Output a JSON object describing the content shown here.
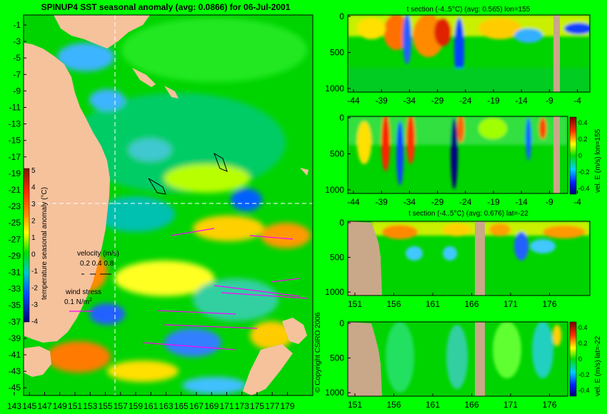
{
  "chart_data": [
    {
      "type": "heatmap",
      "title": "SPINUP4 SST seasonal anomaly  (avg: 0.0866) for 06-Jul-2001",
      "x_ticks": [
        "143",
        "145",
        "147",
        "149",
        "151",
        "153",
        "155",
        "157",
        "159",
        "161",
        "163",
        "165",
        "167",
        "169",
        "171",
        "173",
        "175",
        "177",
        "179"
      ],
      "y_ticks": [
        "-1",
        "-3",
        "-5",
        "-7",
        "-9",
        "-11",
        "-13",
        "-15",
        "-17",
        "-19",
        "-21",
        "-23",
        "-25",
        "-27",
        "-29",
        "-31",
        "-33",
        "-35",
        "-37",
        "-39",
        "-41",
        "-43",
        "-45"
      ],
      "xlim": [
        143,
        180
      ],
      "ylim": [
        -45,
        0
      ],
      "crosshair": {
        "lon": 155,
        "lat": -22
      },
      "colorbar": {
        "label": "temperature seasonal anomaly (°C)",
        "ticks": [
          "5",
          "4",
          "3",
          "2",
          "1",
          "0",
          "-1",
          "-2",
          "-3",
          "-4"
        ],
        "range": [
          -4,
          5
        ]
      },
      "legend": {
        "velocity_label": "velocity (m/s)",
        "velocity_ticks": "0.2 0.4 0.8",
        "wind_label": "wind stress",
        "wind_value": "0.1 N/m",
        "wind_exp": "2"
      },
      "copyright": "© Copyright CSIRO 2006"
    },
    {
      "type": "heatmap",
      "title": "t section (-4..5°C) (avg: 0.565) lon=155",
      "x_ticks": [
        "-44",
        "-39",
        "-34",
        "-29",
        "-24",
        "-19",
        "-14",
        "-9",
        "-4"
      ],
      "y_ticks": [
        "0",
        "500",
        "1000"
      ],
      "xlim": [
        -45,
        -1
      ],
      "ylim": [
        1050,
        0
      ]
    },
    {
      "type": "heatmap",
      "title": "",
      "x_ticks": [
        "-44",
        "-39",
        "-34",
        "-29",
        "-24",
        "-19",
        "-14",
        "-9",
        "-4"
      ],
      "y_ticks": [
        "0",
        "500",
        "1000"
      ],
      "colorbar": {
        "label": "vel. E (m/s) lon=155",
        "ticks": [
          "0.4",
          "0.2",
          "0",
          "-0.2",
          "-0.4"
        ],
        "range": [
          -0.4,
          0.4
        ]
      }
    },
    {
      "type": "heatmap",
      "title": "t section (-4..5°C) (avg: 0.676) lat=-22",
      "x_ticks": [
        "151",
        "156",
        "161",
        "166",
        "171",
        "176"
      ],
      "y_ticks": [
        "0",
        "500",
        "1000"
      ],
      "xlim": [
        150,
        180
      ],
      "ylim": [
        1050,
        0
      ]
    },
    {
      "type": "heatmap",
      "title": "",
      "x_ticks": [
        "151",
        "156",
        "161",
        "166",
        "171",
        "176"
      ],
      "y_ticks": [
        "0",
        "500",
        "1000"
      ],
      "colorbar": {
        "label": "vel. E (m/s) lat=-22",
        "ticks": [
          "0.4",
          "0.2",
          "0",
          "-0.2",
          "-0.4"
        ],
        "range": [
          -0.4,
          0.4
        ]
      }
    }
  ]
}
